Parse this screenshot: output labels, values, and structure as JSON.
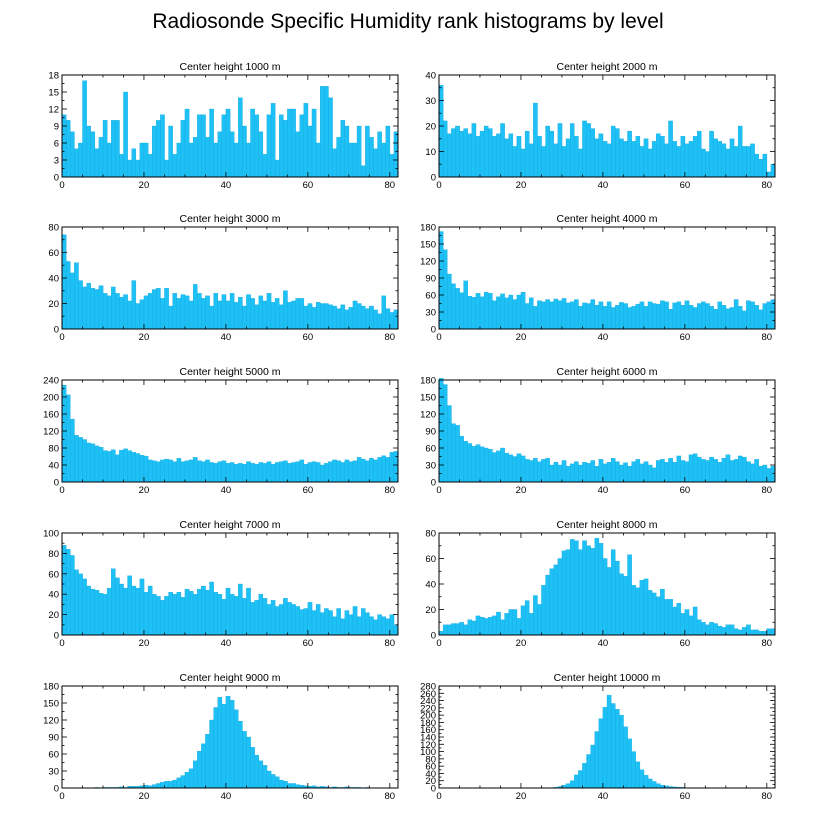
{
  "title": "Radiosonde Specific Humidity rank histograms by level",
  "colors": {
    "bar": "#1ec0f5",
    "axis": "#000000"
  },
  "chart_data": [
    {
      "type": "bar",
      "title": "Center height 1000 m",
      "xlim": [
        0,
        82
      ],
      "ylim": [
        0,
        18
      ],
      "yticks": [
        0,
        3,
        6,
        9,
        12,
        15,
        18
      ],
      "xticks": [
        0,
        20,
        40,
        60,
        80
      ],
      "values": [
        11,
        10,
        8,
        5,
        6,
        17,
        9,
        8,
        5,
        7,
        10,
        6,
        10,
        10,
        4,
        15,
        3,
        5,
        3,
        6,
        6,
        4,
        9,
        10,
        11,
        3,
        9,
        4,
        6,
        10,
        12,
        6,
        7,
        11,
        11,
        7,
        12,
        6,
        8,
        11,
        12,
        8,
        6,
        14,
        9,
        6,
        12,
        11,
        8,
        4,
        11,
        13,
        3,
        11,
        10,
        12,
        12,
        8,
        11,
        13,
        9,
        12,
        6,
        16,
        16,
        14,
        5,
        7,
        10,
        9,
        6,
        6,
        9,
        2,
        9,
        7,
        5,
        8,
        6,
        9,
        4,
        8
      ]
    },
    {
      "type": "bar",
      "title": "Center height 2000 m",
      "xlim": [
        0,
        82
      ],
      "ylim": [
        0,
        40
      ],
      "yticks": [
        0,
        10,
        20,
        30,
        40
      ],
      "xticks": [
        0,
        20,
        40,
        60,
        80
      ],
      "values": [
        36,
        22,
        17,
        19,
        20,
        18,
        19,
        17,
        21,
        16,
        18,
        20,
        19,
        16,
        17,
        21,
        15,
        17,
        12,
        16,
        11,
        18,
        13,
        29,
        16,
        12,
        20,
        18,
        13,
        21,
        12,
        15,
        21,
        16,
        11,
        22,
        21,
        19,
        15,
        17,
        14,
        13,
        20,
        19,
        15,
        14,
        18,
        14,
        16,
        12,
        15,
        11,
        14,
        17,
        16,
        13,
        22,
        14,
        12,
        16,
        13,
        14,
        16,
        18,
        11,
        10,
        18,
        15,
        14,
        13,
        11,
        15,
        12,
        20,
        12,
        12,
        13,
        9,
        7,
        9,
        2,
        5
      ]
    },
    {
      "type": "bar",
      "title": "Center height 3000 m",
      "xlim": [
        0,
        82
      ],
      "ylim": [
        0,
        80
      ],
      "yticks": [
        0,
        20,
        40,
        60,
        80
      ],
      "xticks": [
        0,
        20,
        40,
        60,
        80
      ],
      "values": [
        74,
        53,
        44,
        52,
        38,
        33,
        36,
        32,
        31,
        34,
        28,
        26,
        33,
        28,
        25,
        27,
        22,
        38,
        20,
        23,
        26,
        28,
        31,
        32,
        24,
        32,
        18,
        28,
        24,
        27,
        26,
        22,
        35,
        28,
        24,
        26,
        18,
        28,
        22,
        27,
        22,
        28,
        21,
        25,
        18,
        27,
        24,
        19,
        26,
        22,
        28,
        21,
        24,
        19,
        30,
        21,
        22,
        24,
        24,
        18,
        20,
        17,
        21,
        20,
        20,
        19,
        18,
        16,
        19,
        15,
        17,
        22,
        20,
        18,
        16,
        18,
        15,
        12,
        26,
        16,
        13,
        15
      ]
    },
    {
      "type": "bar",
      "title": "Center height 4000 m",
      "xlim": [
        0,
        82
      ],
      "ylim": [
        0,
        180
      ],
      "yticks": [
        0,
        30,
        60,
        90,
        120,
        150,
        180
      ],
      "xticks": [
        0,
        20,
        40,
        60,
        80
      ],
      "values": [
        172,
        140,
        97,
        80,
        72,
        64,
        85,
        58,
        56,
        63,
        57,
        65,
        63,
        50,
        57,
        62,
        55,
        60,
        52,
        60,
        65,
        45,
        55,
        40,
        50,
        48,
        52,
        48,
        53,
        50,
        54,
        46,
        48,
        52,
        40,
        46,
        45,
        52,
        42,
        48,
        40,
        48,
        38,
        42,
        47,
        45,
        38,
        40,
        44,
        48,
        40,
        48,
        45,
        44,
        50,
        48,
        35,
        46,
        48,
        42,
        50,
        42,
        38,
        45,
        48,
        45,
        40,
        35,
        48,
        42,
        36,
        38,
        52,
        40,
        32,
        50,
        48,
        42,
        34,
        45,
        48,
        52
      ]
    },
    {
      "type": "bar",
      "title": "Center height 5000 m",
      "xlim": [
        0,
        82
      ],
      "ylim": [
        0,
        240
      ],
      "yticks": [
        0,
        40,
        80,
        120,
        160,
        200,
        240
      ],
      "xticks": [
        0,
        20,
        40,
        60,
        80
      ],
      "values": [
        228,
        205,
        148,
        110,
        105,
        100,
        92,
        90,
        85,
        82,
        74,
        72,
        76,
        64,
        75,
        78,
        74,
        70,
        67,
        63,
        61,
        52,
        50,
        48,
        52,
        54,
        52,
        48,
        56,
        48,
        50,
        52,
        58,
        50,
        48,
        52,
        46,
        44,
        48,
        50,
        44,
        46,
        42,
        44,
        42,
        48,
        44,
        42,
        46,
        44,
        48,
        42,
        46,
        48,
        50,
        44,
        46,
        48,
        52,
        42,
        46,
        48,
        46,
        40,
        44,
        48,
        52,
        50,
        46,
        52,
        48,
        50,
        58,
        54,
        50,
        56,
        52,
        58,
        62,
        58,
        70,
        72
      ]
    },
    {
      "type": "bar",
      "title": "Center height 6000 m",
      "xlim": [
        0,
        82
      ],
      "ylim": [
        0,
        180
      ],
      "yticks": [
        0,
        30,
        60,
        90,
        120,
        150,
        180
      ],
      "xticks": [
        0,
        20,
        40,
        60,
        80
      ],
      "values": [
        183,
        172,
        135,
        103,
        100,
        81,
        72,
        68,
        63,
        66,
        62,
        60,
        58,
        52,
        55,
        60,
        51,
        48,
        45,
        50,
        46,
        40,
        38,
        42,
        36,
        40,
        42,
        30,
        35,
        30,
        38,
        28,
        32,
        36,
        30,
        35,
        33,
        38,
        28,
        40,
        32,
        35,
        42,
        36,
        30,
        34,
        28,
        36,
        40,
        32,
        36,
        30,
        25,
        38,
        40,
        35,
        42,
        35,
        46,
        38,
        36,
        48,
        50,
        44,
        40,
        38,
        44,
        40,
        35,
        42,
        48,
        38,
        40,
        46,
        44,
        36,
        32,
        40,
        28,
        30,
        24,
        28
      ]
    },
    {
      "type": "bar",
      "title": "Center height 7000 m",
      "xlim": [
        0,
        82
      ],
      "ylim": [
        0,
        100
      ],
      "yticks": [
        0,
        20,
        40,
        60,
        80,
        100
      ],
      "xticks": [
        0,
        20,
        40,
        60,
        80
      ],
      "values": [
        88,
        84,
        78,
        64,
        60,
        55,
        48,
        45,
        44,
        41,
        40,
        46,
        65,
        56,
        50,
        46,
        58,
        48,
        46,
        55,
        42,
        48,
        40,
        38,
        34,
        38,
        42,
        40,
        42,
        37,
        45,
        43,
        40,
        45,
        48,
        44,
        52,
        42,
        40,
        35,
        46,
        40,
        38,
        50,
        36,
        46,
        32,
        34,
        40,
        36,
        30,
        34,
        28,
        30,
        36,
        32,
        30,
        28,
        25,
        26,
        32,
        24,
        30,
        22,
        26,
        24,
        18,
        26,
        16,
        24,
        20,
        28,
        18,
        26,
        22,
        18,
        15,
        20,
        18,
        16,
        20,
        10
      ]
    },
    {
      "type": "bar",
      "title": "Center height 8000 m",
      "xlim": [
        0,
        82
      ],
      "ylim": [
        0,
        80
      ],
      "yticks": [
        0,
        20,
        40,
        60,
        80
      ],
      "xticks": [
        0,
        20,
        40,
        60,
        80
      ],
      "values": [
        3,
        8,
        8,
        9,
        9,
        10,
        8,
        12,
        11,
        15,
        14,
        13,
        14,
        15,
        18,
        12,
        17,
        20,
        20,
        13,
        23,
        27,
        17,
        31,
        24,
        39,
        47,
        52,
        55,
        60,
        66,
        67,
        75,
        74,
        67,
        74,
        70,
        68,
        76,
        72,
        60,
        53,
        67,
        58,
        48,
        46,
        63,
        39,
        37,
        43,
        44,
        35,
        33,
        30,
        36,
        28,
        28,
        22,
        25,
        17,
        20,
        15,
        22,
        12,
        10,
        8,
        10,
        9,
        7,
        6,
        8,
        8,
        5,
        4,
        6,
        8,
        4,
        4,
        3,
        3,
        5,
        5
      ]
    },
    {
      "type": "bar",
      "title": "Center height 9000 m",
      "xlim": [
        0,
        82
      ],
      "ylim": [
        0,
        180
      ],
      "yticks": [
        0,
        30,
        60,
        90,
        120,
        150,
        180
      ],
      "xticks": [
        0,
        20,
        40,
        60,
        80
      ],
      "values": [
        0,
        0,
        0,
        0,
        0,
        0,
        0,
        0,
        1,
        0,
        1,
        1,
        1,
        1,
        2,
        1,
        3,
        3,
        3,
        4,
        5,
        4,
        6,
        8,
        10,
        12,
        12,
        14,
        18,
        22,
        28,
        34,
        48,
        65,
        78,
        95,
        120,
        142,
        160,
        148,
        162,
        155,
        138,
        118,
        100,
        90,
        72,
        58,
        48,
        40,
        30,
        24,
        20,
        14,
        12,
        8,
        8,
        6,
        5,
        4,
        3,
        4,
        2,
        3,
        2,
        1,
        2,
        1,
        1,
        2,
        1,
        1,
        1,
        0,
        1,
        0,
        0,
        0,
        0,
        0,
        0,
        0
      ]
    },
    {
      "type": "bar",
      "title": "Center height 10000 m",
      "xlim": [
        0,
        82
      ],
      "ylim": [
        0,
        280
      ],
      "yticks": [
        0,
        20,
        40,
        60,
        80,
        100,
        120,
        140,
        160,
        180,
        200,
        220,
        240,
        260,
        280
      ],
      "xticks": [
        0,
        20,
        40,
        60,
        80
      ],
      "values": [
        0,
        0,
        0,
        0,
        0,
        0,
        0,
        0,
        0,
        0,
        0,
        0,
        0,
        0,
        0,
        0,
        0,
        0,
        0,
        0,
        0,
        0,
        0,
        0,
        0,
        0,
        0,
        0,
        2,
        4,
        8,
        12,
        20,
        36,
        48,
        68,
        92,
        118,
        155,
        190,
        222,
        255,
        232,
        216,
        200,
        168,
        135,
        100,
        72,
        50,
        35,
        25,
        18,
        12,
        8,
        6,
        4,
        3,
        2,
        2,
        1,
        1,
        1,
        0,
        0,
        0,
        0,
        0,
        0,
        0,
        0,
        0,
        0,
        0,
        0,
        0,
        0,
        0,
        0,
        0,
        0,
        0
      ]
    }
  ]
}
